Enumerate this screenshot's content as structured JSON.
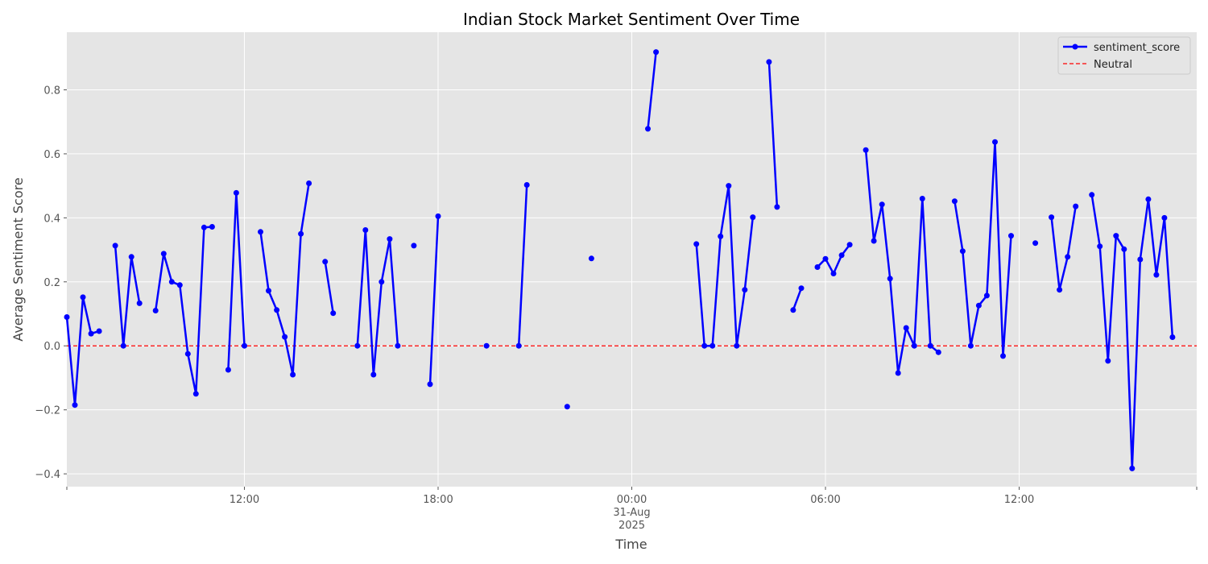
{
  "chart_data": {
    "type": "line",
    "title": "Indian Stock Market Sentiment Over Time",
    "xlabel": "Time",
    "ylabel": "Average Sentiment Score",
    "x_range": [
      "2025-08-30T06:30",
      "2025-08-31T17:30"
    ],
    "ylim": [
      -0.44,
      0.98
    ],
    "y_ticks": [
      -0.4,
      -0.2,
      0.0,
      0.2,
      0.4,
      0.6,
      0.8
    ],
    "y_tick_labels": [
      "−0.4",
      "−0.2",
      "0.0",
      "0.2",
      "0.4",
      "0.6",
      "0.8"
    ],
    "x_ticks": [
      {
        "t": "2025-08-30T12:00",
        "lines": [
          "12:00"
        ]
      },
      {
        "t": "2025-08-30T18:00",
        "lines": [
          "18:00"
        ]
      },
      {
        "t": "2025-08-31T00:00",
        "lines": [
          "00:00",
          "31-Aug",
          "2025"
        ]
      },
      {
        "t": "2025-08-31T06:00",
        "lines": [
          "06:00"
        ]
      },
      {
        "t": "2025-08-31T12:00",
        "lines": [
          "12:00"
        ]
      }
    ],
    "grid": true,
    "legend_position": "top-right",
    "series": [
      {
        "name": "sentiment_score",
        "color": "#0000ff",
        "marker": "circle",
        "values": [
          [
            "2025-08-30T06:30",
            0.09
          ],
          [
            "2025-08-30T06:45",
            -0.185
          ],
          [
            "2025-08-30T07:00",
            0.152
          ],
          [
            "2025-08-30T07:15",
            0.038
          ],
          [
            "2025-08-30T07:30",
            0.046
          ],
          [
            "2025-08-30T07:45",
            null
          ],
          [
            "2025-08-30T08:00",
            0.313
          ],
          [
            "2025-08-30T08:15",
            0.0
          ],
          [
            "2025-08-30T08:30",
            0.278
          ],
          [
            "2025-08-30T08:45",
            0.133
          ],
          [
            "2025-08-30T09:00",
            null
          ],
          [
            "2025-08-30T09:15",
            0.11
          ],
          [
            "2025-08-30T09:30",
            0.288
          ],
          [
            "2025-08-30T09:45",
            0.2
          ],
          [
            "2025-08-30T10:00",
            0.19
          ],
          [
            "2025-08-30T10:15",
            -0.025
          ],
          [
            "2025-08-30T10:30",
            -0.15
          ],
          [
            "2025-08-30T10:45",
            0.37
          ],
          [
            "2025-08-30T11:00",
            0.372
          ],
          [
            "2025-08-30T11:15",
            null
          ],
          [
            "2025-08-30T11:30",
            -0.075
          ],
          [
            "2025-08-30T11:45",
            0.478
          ],
          [
            "2025-08-30T12:00",
            0.0
          ],
          [
            "2025-08-30T12:15",
            null
          ],
          [
            "2025-08-30T12:30",
            0.356
          ],
          [
            "2025-08-30T12:45",
            0.172
          ],
          [
            "2025-08-30T13:00",
            0.112
          ],
          [
            "2025-08-30T13:15",
            0.028
          ],
          [
            "2025-08-30T13:30",
            -0.09
          ],
          [
            "2025-08-30T13:45",
            0.35
          ],
          [
            "2025-08-30T14:00",
            0.508
          ],
          [
            "2025-08-30T14:15",
            null
          ],
          [
            "2025-08-30T14:30",
            0.263
          ],
          [
            "2025-08-30T14:45",
            0.102
          ],
          [
            "2025-08-30T15:00",
            null
          ],
          [
            "2025-08-30T15:30",
            0.0
          ],
          [
            "2025-08-30T15:45",
            0.362
          ],
          [
            "2025-08-30T16:00",
            -0.09
          ],
          [
            "2025-08-30T16:15",
            0.2
          ],
          [
            "2025-08-30T16:30",
            0.334
          ],
          [
            "2025-08-30T16:45",
            0.0
          ],
          [
            "2025-08-30T17:00",
            null
          ],
          [
            "2025-08-30T17:15",
            0.313
          ],
          [
            "2025-08-30T17:30",
            null
          ],
          [
            "2025-08-30T17:45",
            -0.12
          ],
          [
            "2025-08-30T18:00",
            0.405
          ],
          [
            "2025-08-30T18:15",
            null
          ],
          [
            "2025-08-30T19:30",
            0.0
          ],
          [
            "2025-08-30T19:45",
            null
          ],
          [
            "2025-08-30T20:30",
            0.0
          ],
          [
            "2025-08-30T20:45",
            0.503
          ],
          [
            "2025-08-30T21:00",
            null
          ],
          [
            "2025-08-30T22:00",
            -0.19
          ],
          [
            "2025-08-30T22:15",
            null
          ],
          [
            "2025-08-30T22:45",
            0.273
          ],
          [
            "2025-08-30T23:00",
            null
          ],
          [
            "2025-08-31T00:30",
            0.678
          ],
          [
            "2025-08-31T00:45",
            0.918
          ],
          [
            "2025-08-31T01:00",
            null
          ],
          [
            "2025-08-31T02:00",
            0.318
          ],
          [
            "2025-08-31T02:15",
            0.0
          ],
          [
            "2025-08-31T02:30",
            0.0
          ],
          [
            "2025-08-31T02:45",
            0.342
          ],
          [
            "2025-08-31T03:00",
            0.5
          ],
          [
            "2025-08-31T03:15",
            0.0
          ],
          [
            "2025-08-31T03:30",
            0.175
          ],
          [
            "2025-08-31T03:45",
            0.402
          ],
          [
            "2025-08-31T04:00",
            null
          ],
          [
            "2025-08-31T04:15",
            0.887
          ],
          [
            "2025-08-31T04:30",
            0.434
          ],
          [
            "2025-08-31T04:45",
            null
          ],
          [
            "2025-08-31T05:00",
            0.112
          ],
          [
            "2025-08-31T05:15",
            0.18
          ],
          [
            "2025-08-31T05:30",
            null
          ],
          [
            "2025-08-31T05:45",
            0.246
          ],
          [
            "2025-08-31T06:00",
            0.272
          ],
          [
            "2025-08-31T06:15",
            0.226
          ],
          [
            "2025-08-31T06:30",
            0.283
          ],
          [
            "2025-08-31T06:45",
            0.316
          ],
          [
            "2025-08-31T07:00",
            null
          ],
          [
            "2025-08-31T07:15",
            0.612
          ],
          [
            "2025-08-31T07:30",
            0.328
          ],
          [
            "2025-08-31T07:45",
            0.442
          ],
          [
            "2025-08-31T08:00",
            0.21
          ],
          [
            "2025-08-31T08:15",
            -0.085
          ],
          [
            "2025-08-31T08:30",
            0.056
          ],
          [
            "2025-08-31T08:45",
            0.0
          ],
          [
            "2025-08-31T09:00",
            0.46
          ],
          [
            "2025-08-31T09:15",
            0.0
          ],
          [
            "2025-08-31T09:30",
            -0.02
          ],
          [
            "2025-08-31T09:45",
            null
          ],
          [
            "2025-08-31T10:00",
            0.452
          ],
          [
            "2025-08-31T10:15",
            0.296
          ],
          [
            "2025-08-31T10:30",
            0.0
          ],
          [
            "2025-08-31T10:45",
            0.126
          ],
          [
            "2025-08-31T11:00",
            0.157
          ],
          [
            "2025-08-31T11:15",
            0.637
          ],
          [
            "2025-08-31T11:30",
            -0.032
          ],
          [
            "2025-08-31T11:45",
            0.344
          ],
          [
            "2025-08-31T12:00",
            null
          ],
          [
            "2025-08-31T12:30",
            0.321
          ],
          [
            "2025-08-31T12:45",
            null
          ],
          [
            "2025-08-31T13:00",
            0.402
          ],
          [
            "2025-08-31T13:15",
            0.175
          ],
          [
            "2025-08-31T13:30",
            0.278
          ],
          [
            "2025-08-31T13:45",
            0.436
          ],
          [
            "2025-08-31T14:00",
            null
          ],
          [
            "2025-08-31T14:15",
            0.472
          ],
          [
            "2025-08-31T14:30",
            0.311
          ],
          [
            "2025-08-31T14:45",
            -0.047
          ],
          [
            "2025-08-31T15:00",
            0.344
          ],
          [
            "2025-08-31T15:15",
            0.302
          ],
          [
            "2025-08-31T15:30",
            -0.383
          ],
          [
            "2025-08-31T15:45",
            0.27
          ],
          [
            "2025-08-31T16:00",
            0.458
          ],
          [
            "2025-08-31T16:15",
            0.222
          ],
          [
            "2025-08-31T16:30",
            0.4
          ],
          [
            "2025-08-31T16:45",
            0.027
          ]
        ]
      },
      {
        "name": "Neutral",
        "color": "#ff0000",
        "style": "dashed",
        "y": 0.0
      }
    ]
  }
}
